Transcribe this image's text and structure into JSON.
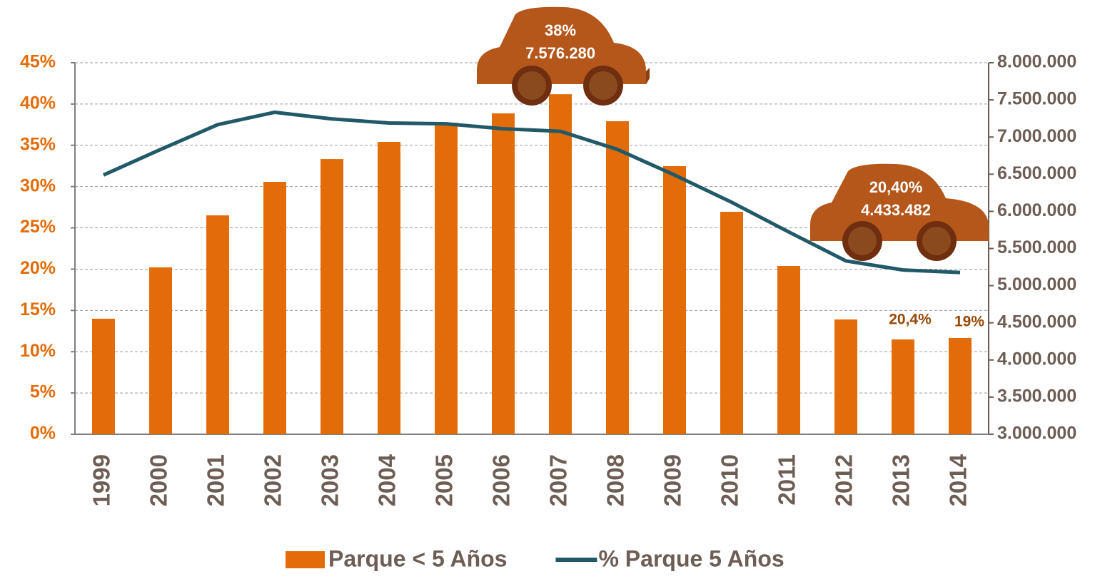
{
  "chart_data": {
    "type": "bar_line",
    "categories": [
      "1999",
      "2000",
      "2001",
      "2002",
      "2003",
      "2004",
      "2005",
      "2006",
      "2007",
      "2008",
      "2009",
      "2010",
      "2011",
      "2012",
      "2013",
      "2014"
    ],
    "series": [
      {
        "name": "Parque < 5 Años",
        "type": "bar",
        "axis": "y2",
        "color": "#e36c0a",
        "values": [
          4555000,
          5246000,
          5946000,
          6397000,
          6704000,
          6935000,
          7194000,
          7319000,
          7576280,
          7213000,
          6608000,
          5994000,
          5265000,
          4545000,
          4276000,
          4296000
        ]
      },
      {
        "name": "% Parque 5 Años",
        "type": "line",
        "color": "#215968",
        "values": [
          31.4,
          34.5,
          37.5,
          39.0,
          38.2,
          37.7,
          37.6,
          37.0,
          36.7,
          34.5,
          31.4,
          28.1,
          24.5,
          21.0,
          19.9,
          19.6
        ]
      }
    ],
    "ylim": [
      0,
      45
    ],
    "yticks": [
      {
        "value": 0,
        "label": "0%"
      },
      {
        "value": 5,
        "label": "5%"
      },
      {
        "value": 10,
        "label": "10%"
      },
      {
        "value": 15,
        "label": "15%"
      },
      {
        "value": 20,
        "label": "20%"
      },
      {
        "value": 25,
        "label": "25%"
      },
      {
        "value": 30,
        "label": "30%"
      },
      {
        "value": 35,
        "label": "35%"
      },
      {
        "value": 40,
        "label": "40%"
      },
      {
        "value": 45,
        "label": "45%"
      }
    ],
    "y2lim": [
      3000000,
      8000000
    ],
    "y2ticks": [
      {
        "value": 3000000,
        "label": "3.000.000"
      },
      {
        "value": 3500000,
        "label": "3.500.000"
      },
      {
        "value": 4000000,
        "label": "4.000.000"
      },
      {
        "value": 4500000,
        "label": "4.500.000"
      },
      {
        "value": 5000000,
        "label": "5.000.000"
      },
      {
        "value": 5500000,
        "label": "5.500.000"
      },
      {
        "value": 6000000,
        "label": "6.000.000"
      },
      {
        "value": 6500000,
        "label": "6.500.000"
      },
      {
        "value": 7000000,
        "label": "7.000.000"
      },
      {
        "value": 7500000,
        "label": "7.500.000"
      },
      {
        "value": 8000000,
        "label": "8.000.000"
      }
    ],
    "grid": true,
    "legend": "bottom",
    "annotations": [
      "38%",
      "7.576.280",
      "20,40%",
      "4.433.482",
      "20,4%",
      "19%"
    ]
  }
}
